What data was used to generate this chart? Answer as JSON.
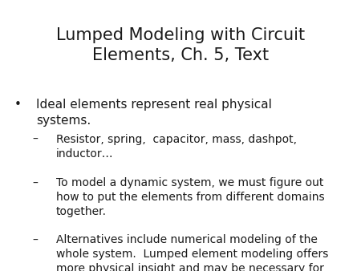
{
  "title": "Lumped Modeling with Circuit\nElements, Ch. 5, Text",
  "title_fontsize": 15,
  "title_color": "#1a1a1a",
  "background_color": "#ffffff",
  "bullet_symbol": "•",
  "bullet_text": "Ideal elements represent real physical\nsystems.",
  "bullet_fontsize": 11,
  "sub_bullet_fontsize": 10,
  "sub_bullets": [
    {
      "dash": "–",
      "text": "Resistor, spring,  capacitor, mass, dashpot,\ninductor…"
    },
    {
      "dash": "–",
      "text": "To model a dynamic system, we must figure out\nhow to put the elements from different domains\ntogether."
    },
    {
      "dash": "–",
      "text": "Alternatives include numerical modeling of the\nwhole system.  Lumped element modeling offers\nmore physical insight and may be necessary for\ntimely solutions."
    }
  ]
}
